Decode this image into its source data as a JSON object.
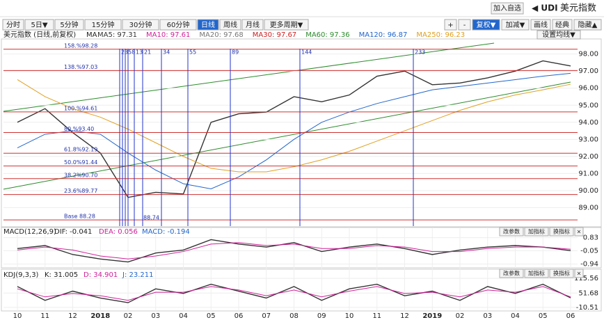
{
  "header": {
    "add_button": "加入自选",
    "symbol": "◀ UDI",
    "name": "美元指数"
  },
  "toolbar": {
    "left": [
      "分时",
      "5日▼",
      "5分钟",
      "15分钟",
      "30分钟",
      "60分钟",
      "日线",
      "周线",
      "月线",
      "更多周期▼"
    ],
    "selected": "日线",
    "right": [
      "+",
      "-",
      "复权▼",
      "加减▼",
      "画线",
      "经典",
      "隐藏▲"
    ]
  },
  "legend": {
    "title": "美元指数 (日线,前复权)",
    "ma": "MA",
    "items": [
      {
        "text": "MA5: 97.31",
        "color": "#333333"
      },
      {
        "text": "MA10: 97.61",
        "color": "#d0209a"
      },
      {
        "text": "MA20: 97.68",
        "color": "#777777"
      },
      {
        "text": "MA30: 97.67",
        "color": "#cc2222"
      },
      {
        "text": "MA60: 97.36",
        "color": "#2a8a2a"
      },
      {
        "text": "MA120: 96.87",
        "color": "#2266cc"
      },
      {
        "text": "MA250: 96.23",
        "color": "#e0a020"
      }
    ],
    "settings": "设置均线▼"
  },
  "main_chart": {
    "ylim": [
      87.92,
      98.8
    ],
    "yticks": [
      {
        "value": 98,
        "label": "98.00"
      },
      {
        "value": 97,
        "label": "97.00"
      },
      {
        "value": 96,
        "label": "96.00"
      },
      {
        "value": 95,
        "label": "95.00"
      },
      {
        "value": 94,
        "label": "94.00"
      },
      {
        "value": 93,
        "label": "93.00"
      },
      {
        "value": 92,
        "label": "92.00"
      },
      {
        "value": 91,
        "label": "91.00"
      },
      {
        "value": 90,
        "label": "90.00"
      },
      {
        "value": 89,
        "label": "89.00"
      }
    ],
    "fib_levels": [
      {
        "value": 98.28,
        "label": "158.%98.28"
      },
      {
        "value": 97.03,
        "label": "138.%97.03"
      },
      {
        "value": 94.61,
        "label": "100.%94.61"
      },
      {
        "value": 93.4,
        "label": "80.%93.40"
      },
      {
        "value": 92.19,
        "label": "61.8%92.19"
      },
      {
        "value": 91.44,
        "label": "50.0%91.44"
      },
      {
        "value": 90.7,
        "label": "38.2%90.70"
      },
      {
        "value": 89.77,
        "label": "23.6%89.77"
      },
      {
        "value": 88.28,
        "label": "Base 88.28"
      }
    ],
    "time_lines": [
      "2358",
      "13",
      "21",
      "34",
      "55",
      "89",
      "144",
      "233"
    ],
    "low_label": "88.74",
    "categories": [
      "10",
      "11",
      "12",
      "2018",
      "02",
      "03",
      "04",
      "05",
      "06",
      "07",
      "08",
      "09",
      "10",
      "11",
      "12",
      "2019",
      "02",
      "03",
      "04",
      "05",
      "06"
    ],
    "series": [
      {
        "name": "美元指数",
        "color": "#333333",
        "values": [
          94.0,
          94.8,
          93.4,
          92.2,
          89.6,
          89.9,
          89.8,
          94.0,
          94.5,
          94.6,
          95.5,
          95.2,
          95.6,
          96.7,
          97.0,
          96.2,
          96.3,
          96.6,
          97.0,
          97.6,
          97.3
        ]
      },
      {
        "name": "MA120",
        "color": "#2266cc",
        "values": [
          92.5,
          93.3,
          93.5,
          93.3,
          92.2,
          91.2,
          90.4,
          90.1,
          90.8,
          91.8,
          93.0,
          94.0,
          94.6,
          95.1,
          95.5,
          95.9,
          96.1,
          96.3,
          96.5,
          96.7,
          96.87
        ]
      },
      {
        "name": "MA250",
        "color": "#e0a020",
        "values": [
          96.5,
          95.5,
          94.8,
          94.3,
          93.6,
          92.8,
          92.0,
          91.3,
          91.1,
          91.1,
          91.4,
          91.8,
          92.3,
          92.9,
          93.5,
          94.1,
          94.7,
          95.2,
          95.6,
          95.9,
          96.23
        ]
      }
    ]
  },
  "macd": {
    "title": "MACD(12,26,9)",
    "dif": "DIF: -0.041",
    "dea": "DEA: 0.056",
    "macd": "MACD: -0.194",
    "buttons": [
      "改参数",
      "加指标",
      "换指标",
      "×"
    ],
    "ylim": [
      -1.1,
      1.0
    ],
    "yticks": [
      0.83,
      -0.05,
      -0.94
    ],
    "series": [
      {
        "name": "DIF",
        "color": "#333333",
        "values": [
          0.1,
          0.3,
          -0.3,
          -0.6,
          -0.8,
          -0.2,
          0.0,
          0.7,
          0.4,
          0.2,
          0.5,
          -0.1,
          0.2,
          0.4,
          0.1,
          -0.3,
          0.0,
          0.2,
          0.3,
          0.2,
          -0.041
        ]
      },
      {
        "name": "DEA",
        "color": "#d0209a",
        "values": [
          0.0,
          0.2,
          0.0,
          -0.4,
          -0.6,
          -0.4,
          -0.1,
          0.4,
          0.5,
          0.3,
          0.4,
          0.1,
          0.1,
          0.3,
          0.2,
          -0.1,
          -0.1,
          0.1,
          0.2,
          0.2,
          0.056
        ]
      }
    ]
  },
  "kdj": {
    "title": "KDJ(9,3,3)",
    "k": "K: 31.005",
    "d": "D: 34.901",
    "j": "J: 23.211",
    "buttons": [
      "改参数",
      "加指标",
      "换指标",
      "×"
    ],
    "ylim": [
      -20,
      125
    ],
    "yticks": [
      {
        "value": 115.56,
        "label": "115.56"
      },
      {
        "value": 51.68,
        "label": "51.68"
      },
      {
        "value": -10.51,
        "label": "-10.51"
      }
    ],
    "series": [
      {
        "name": "K",
        "color": "#333333",
        "values": [
          80,
          20,
          60,
          30,
          10,
          70,
          50,
          90,
          60,
          30,
          80,
          20,
          70,
          90,
          40,
          60,
          20,
          80,
          50,
          90,
          31.005
        ]
      },
      {
        "name": "D",
        "color": "#d0209a",
        "values": [
          70,
          35,
          50,
          40,
          20,
          55,
          55,
          80,
          65,
          40,
          65,
          35,
          60,
          80,
          50,
          55,
          35,
          65,
          55,
          80,
          34.901
        ]
      }
    ]
  }
}
